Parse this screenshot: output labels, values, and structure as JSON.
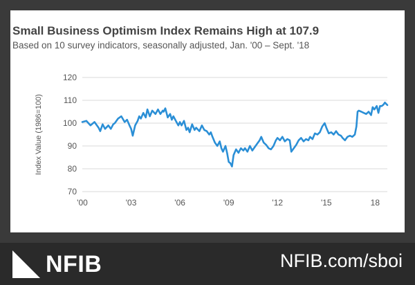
{
  "chart_data": {
    "type": "line",
    "title": "Small Business Optimism Index Remains High at 107.9",
    "subtitle": "Based on 10 survey indicators, seasonally adjusted, Jan. '00 – Sept. '18",
    "ylabel": "Index Value (1986=100)",
    "xlabel": "",
    "ylim": [
      70,
      120
    ],
    "yticks": [
      70,
      80,
      90,
      100,
      110,
      120
    ],
    "xlim": [
      2000.0,
      2018.75
    ],
    "xticks": [
      {
        "value": 2000,
        "label": "'00"
      },
      {
        "value": 2003,
        "label": "'03"
      },
      {
        "value": 2006,
        "label": "'06"
      },
      {
        "value": 2009,
        "label": "'09"
      },
      {
        "value": 2012,
        "label": "'12"
      },
      {
        "value": 2015,
        "label": "'15"
      },
      {
        "value": 2018,
        "label": "18"
      }
    ],
    "grid": "horizontal",
    "line_color": "#2b8fd6",
    "series": [
      {
        "values": [
          [
            2000.0,
            100.5
          ],
          [
            2000.25,
            101
          ],
          [
            2000.5,
            99
          ],
          [
            2000.75,
            100.5
          ],
          [
            2001.0,
            98
          ],
          [
            2001.1,
            96.5
          ],
          [
            2001.25,
            99.5
          ],
          [
            2001.4,
            97.5
          ],
          [
            2001.6,
            99
          ],
          [
            2001.75,
            97.5
          ],
          [
            2001.9,
            99.5
          ],
          [
            2002.0,
            100
          ],
          [
            2002.2,
            102
          ],
          [
            2002.4,
            103
          ],
          [
            2002.6,
            100.5
          ],
          [
            2002.75,
            101.5
          ],
          [
            2002.9,
            99
          ],
          [
            2003.0,
            97.5
          ],
          [
            2003.1,
            94.5
          ],
          [
            2003.25,
            99
          ],
          [
            2003.4,
            101
          ],
          [
            2003.5,
            103
          ],
          [
            2003.6,
            102
          ],
          [
            2003.75,
            104.5
          ],
          [
            2003.9,
            102.5
          ],
          [
            2004.0,
            106
          ],
          [
            2004.15,
            103
          ],
          [
            2004.3,
            105.5
          ],
          [
            2004.5,
            104
          ],
          [
            2004.65,
            106
          ],
          [
            2004.8,
            104
          ],
          [
            2004.95,
            105.5
          ],
          [
            2005.0,
            105
          ],
          [
            2005.1,
            106.5
          ],
          [
            2005.25,
            102.5
          ],
          [
            2005.4,
            104
          ],
          [
            2005.5,
            101.5
          ],
          [
            2005.6,
            103
          ],
          [
            2005.75,
            101
          ],
          [
            2005.9,
            99
          ],
          [
            2006.0,
            100.5
          ],
          [
            2006.1,
            99
          ],
          [
            2006.25,
            101
          ],
          [
            2006.4,
            97
          ],
          [
            2006.5,
            98
          ],
          [
            2006.6,
            96
          ],
          [
            2006.75,
            99.5
          ],
          [
            2006.9,
            97
          ],
          [
            2007.0,
            98
          ],
          [
            2007.2,
            96.5
          ],
          [
            2007.35,
            99
          ],
          [
            2007.5,
            97
          ],
          [
            2007.65,
            96.5
          ],
          [
            2007.8,
            95
          ],
          [
            2007.9,
            96
          ],
          [
            2008.0,
            94
          ],
          [
            2008.15,
            91.5
          ],
          [
            2008.3,
            90
          ],
          [
            2008.45,
            92
          ],
          [
            2008.55,
            89
          ],
          [
            2008.65,
            87.5
          ],
          [
            2008.8,
            90
          ],
          [
            2008.9,
            87
          ],
          [
            2009.0,
            83
          ],
          [
            2009.1,
            82.5
          ],
          [
            2009.2,
            81
          ],
          [
            2009.3,
            86
          ],
          [
            2009.45,
            88.5
          ],
          [
            2009.6,
            87
          ],
          [
            2009.75,
            89
          ],
          [
            2009.9,
            88
          ],
          [
            2010.0,
            89
          ],
          [
            2010.15,
            87.5
          ],
          [
            2010.3,
            90
          ],
          [
            2010.45,
            88
          ],
          [
            2010.6,
            89.5
          ],
          [
            2010.75,
            91
          ],
          [
            2010.9,
            92.5
          ],
          [
            2011.0,
            94
          ],
          [
            2011.15,
            91.5
          ],
          [
            2011.3,
            90.5
          ],
          [
            2011.45,
            89
          ],
          [
            2011.6,
            88.5
          ],
          [
            2011.75,
            90
          ],
          [
            2011.9,
            92.5
          ],
          [
            2012.0,
            93.5
          ],
          [
            2012.15,
            92.5
          ],
          [
            2012.3,
            94
          ],
          [
            2012.45,
            92
          ],
          [
            2012.6,
            93
          ],
          [
            2012.75,
            92.5
          ],
          [
            2012.85,
            87.5
          ],
          [
            2012.95,
            88.5
          ],
          [
            2013.0,
            89
          ],
          [
            2013.15,
            90.5
          ],
          [
            2013.3,
            92.5
          ],
          [
            2013.45,
            93.5
          ],
          [
            2013.6,
            92
          ],
          [
            2013.75,
            93
          ],
          [
            2013.9,
            92.5
          ],
          [
            2014.0,
            94
          ],
          [
            2014.15,
            93
          ],
          [
            2014.3,
            95.5
          ],
          [
            2014.45,
            95
          ],
          [
            2014.6,
            96
          ],
          [
            2014.75,
            98.5
          ],
          [
            2014.9,
            100
          ],
          [
            2015.0,
            98
          ],
          [
            2015.15,
            95.5
          ],
          [
            2015.3,
            96
          ],
          [
            2015.45,
            95
          ],
          [
            2015.6,
            96.5
          ],
          [
            2015.75,
            95
          ],
          [
            2015.9,
            94.5
          ],
          [
            2016.0,
            93.5
          ],
          [
            2016.15,
            92.5
          ],
          [
            2016.3,
            94
          ],
          [
            2016.45,
            94.5
          ],
          [
            2016.6,
            94
          ],
          [
            2016.75,
            95
          ],
          [
            2016.85,
            98.5
          ],
          [
            2016.92,
            105
          ],
          [
            2017.0,
            105.5
          ],
          [
            2017.15,
            105
          ],
          [
            2017.3,
            104.5
          ],
          [
            2017.45,
            104
          ],
          [
            2017.6,
            105
          ],
          [
            2017.75,
            103.5
          ],
          [
            2017.85,
            107
          ],
          [
            2017.95,
            106
          ],
          [
            2018.0,
            106.5
          ],
          [
            2018.1,
            107.5
          ],
          [
            2018.2,
            104.5
          ],
          [
            2018.3,
            107.5
          ],
          [
            2018.4,
            107.5
          ],
          [
            2018.5,
            108
          ],
          [
            2018.6,
            109
          ],
          [
            2018.75,
            107.9
          ]
        ]
      }
    ]
  },
  "footer": {
    "logo_text": "NFIB",
    "url": "NFIB.com/sboi"
  },
  "colors": {
    "background": "#3a3a3a",
    "footer": "#2a2a2a",
    "grid": "#d9d9d9",
    "tick_text": "#555555"
  }
}
